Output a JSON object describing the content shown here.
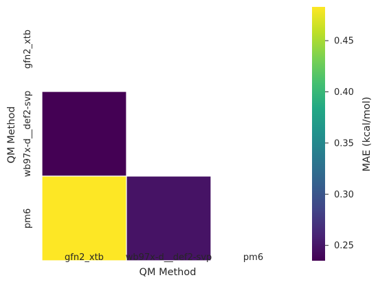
{
  "chart_data": {
    "type": "heatmap",
    "title": "",
    "xlabel": "QM Method",
    "ylabel": "QM Method",
    "x_categories": [
      "gfn2_xtb",
      "wb97x-d__def2-svp",
      "pm6"
    ],
    "y_categories": [
      "gfn2_xtb",
      "wb97x-d__def2-svp",
      "pm6"
    ],
    "mask": "upper-triangle-including-diagonal",
    "cells": [
      {
        "row": "wb97x-d__def2-svp",
        "col": "gfn2_xtb",
        "value": 0.235
      },
      {
        "row": "pm6",
        "col": "gfn2_xtb",
        "value": 0.483
      },
      {
        "row": "pm6",
        "col": "wb97x-d__def2-svp",
        "value": 0.248
      }
    ],
    "colorbar": {
      "label": "MAE (kcal/mol)",
      "colormap": "viridis",
      "range": [
        0.235,
        0.483
      ],
      "ticks": [
        "0.25",
        "0.30",
        "0.35",
        "0.40",
        "0.45"
      ]
    },
    "grid": false,
    "cell_border_color": "#ffffff"
  }
}
